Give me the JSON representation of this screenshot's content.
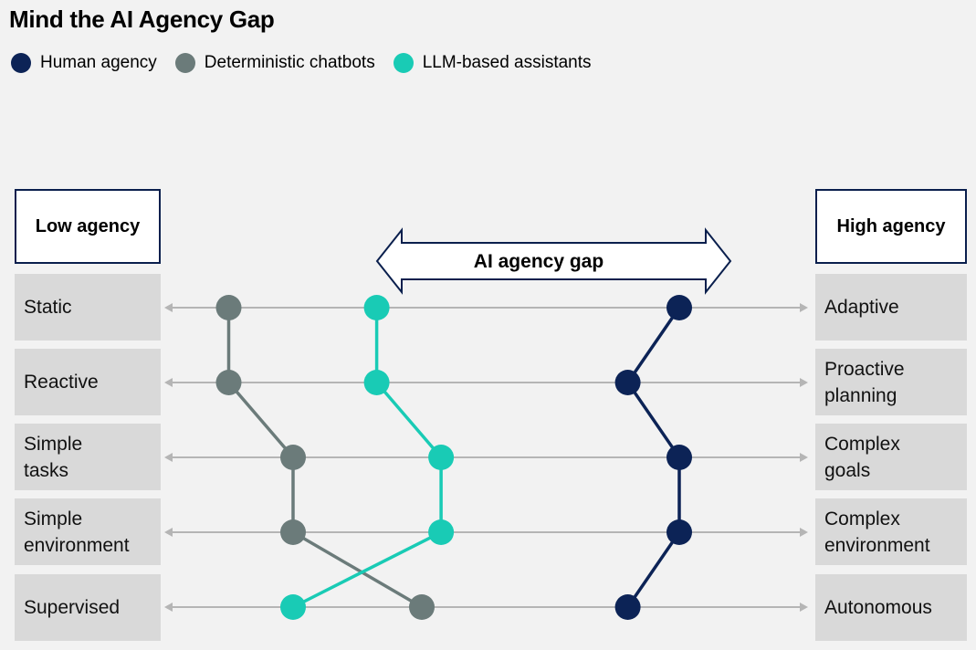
{
  "title": "Mind the AI Agency Gap",
  "legend": [
    {
      "label": "Human agency",
      "color": "#0c2356"
    },
    {
      "label": "Deterministic chatbots",
      "color": "#6b7b7a"
    },
    {
      "label": "LLM-based assistants",
      "color": "#19cbb5"
    }
  ],
  "headers": {
    "left": "Low agency",
    "right": "High agency"
  },
  "gap_label": "AI agency gap",
  "rows": [
    {
      "left": "Static",
      "right": "Adaptive"
    },
    {
      "left": "Reactive",
      "right": "Proactive planning"
    },
    {
      "left": "Simple tasks",
      "right": "Complex goals"
    },
    {
      "left": "Simple environment",
      "right": "Complex environment"
    },
    {
      "left": "Supervised",
      "right": "Autonomous"
    }
  ],
  "chart_data": {
    "type": "slope",
    "title": "Mind the AI Agency Gap",
    "scale": "low agency (0) to high agency (1)",
    "dimensions": [
      "Static / Adaptive",
      "Reactive / Proactive planning",
      "Simple tasks / Complex goals",
      "Simple environment / Complex environment",
      "Supervised / Autonomous"
    ],
    "series": [
      {
        "name": "Deterministic chatbots",
        "color": "#6b7b7a",
        "values": [
          0.1,
          0.1,
          0.2,
          0.2,
          0.4
        ]
      },
      {
        "name": "LLM-based assistants",
        "color": "#19cbb5",
        "values": [
          0.33,
          0.33,
          0.43,
          0.43,
          0.2
        ]
      },
      {
        "name": "Human agency",
        "color": "#0c2356",
        "values": [
          0.8,
          0.72,
          0.8,
          0.8,
          0.72
        ]
      }
    ]
  }
}
